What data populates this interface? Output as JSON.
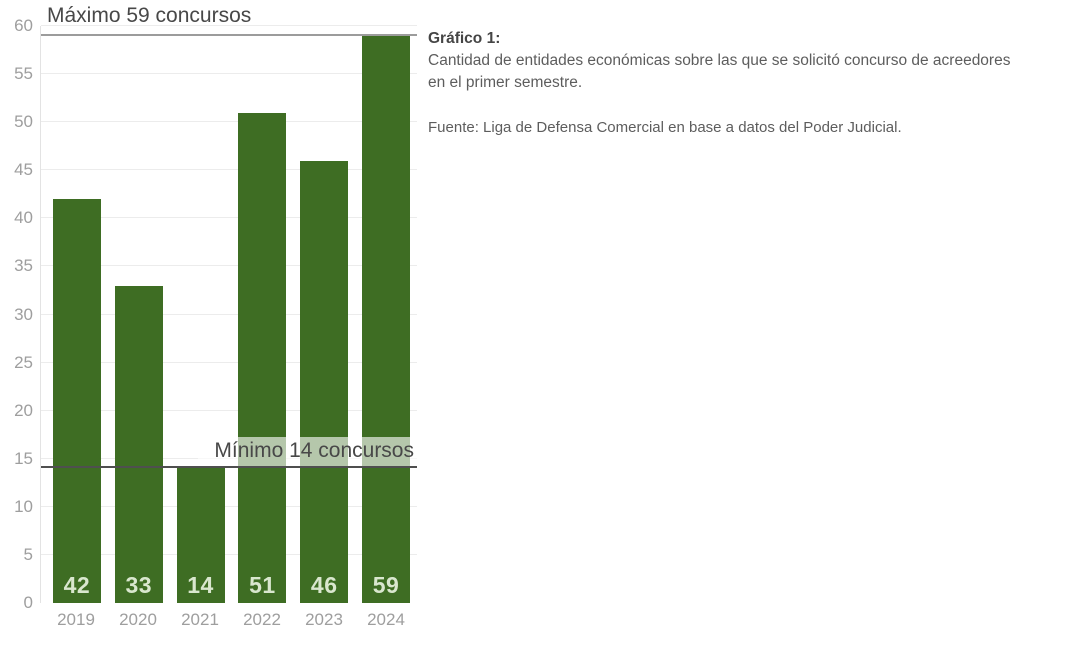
{
  "chart_data": {
    "type": "bar",
    "categories": [
      "2019",
      "2020",
      "2021",
      "2022",
      "2023",
      "2024"
    ],
    "values": [
      42,
      33,
      14,
      51,
      46,
      59
    ],
    "bar_labels": [
      "42",
      "33",
      "14",
      "51",
      "46",
      "59"
    ],
    "xlabel": "",
    "ylabel": "",
    "ylim": [
      0,
      60
    ],
    "ytick_step": 5,
    "grid": "horizontal",
    "legend": "none",
    "annotations": {
      "max": {
        "label": "Máximo 59 concursos",
        "value": 59
      },
      "min": {
        "label": "Mínimo 14 concursos",
        "value": 14
      }
    },
    "colors": {
      "bar": "#3e6d23",
      "bar_label": "#d9e7ce",
      "axis_label": "#9e9e9e",
      "grid": "#ececec",
      "max_line": "#9c9c9c",
      "min_line": "#4f4f4f",
      "annotation_text": "#484848"
    }
  },
  "caption": {
    "title": "Gráfico 1:",
    "description": "Cantidad de entidades económicas sobre las que se solicitó concurso de acreedores\n en el primer semestre.",
    "source": "Fuente: Liga de Defensa Comercial en base a datos del Poder Judicial."
  }
}
